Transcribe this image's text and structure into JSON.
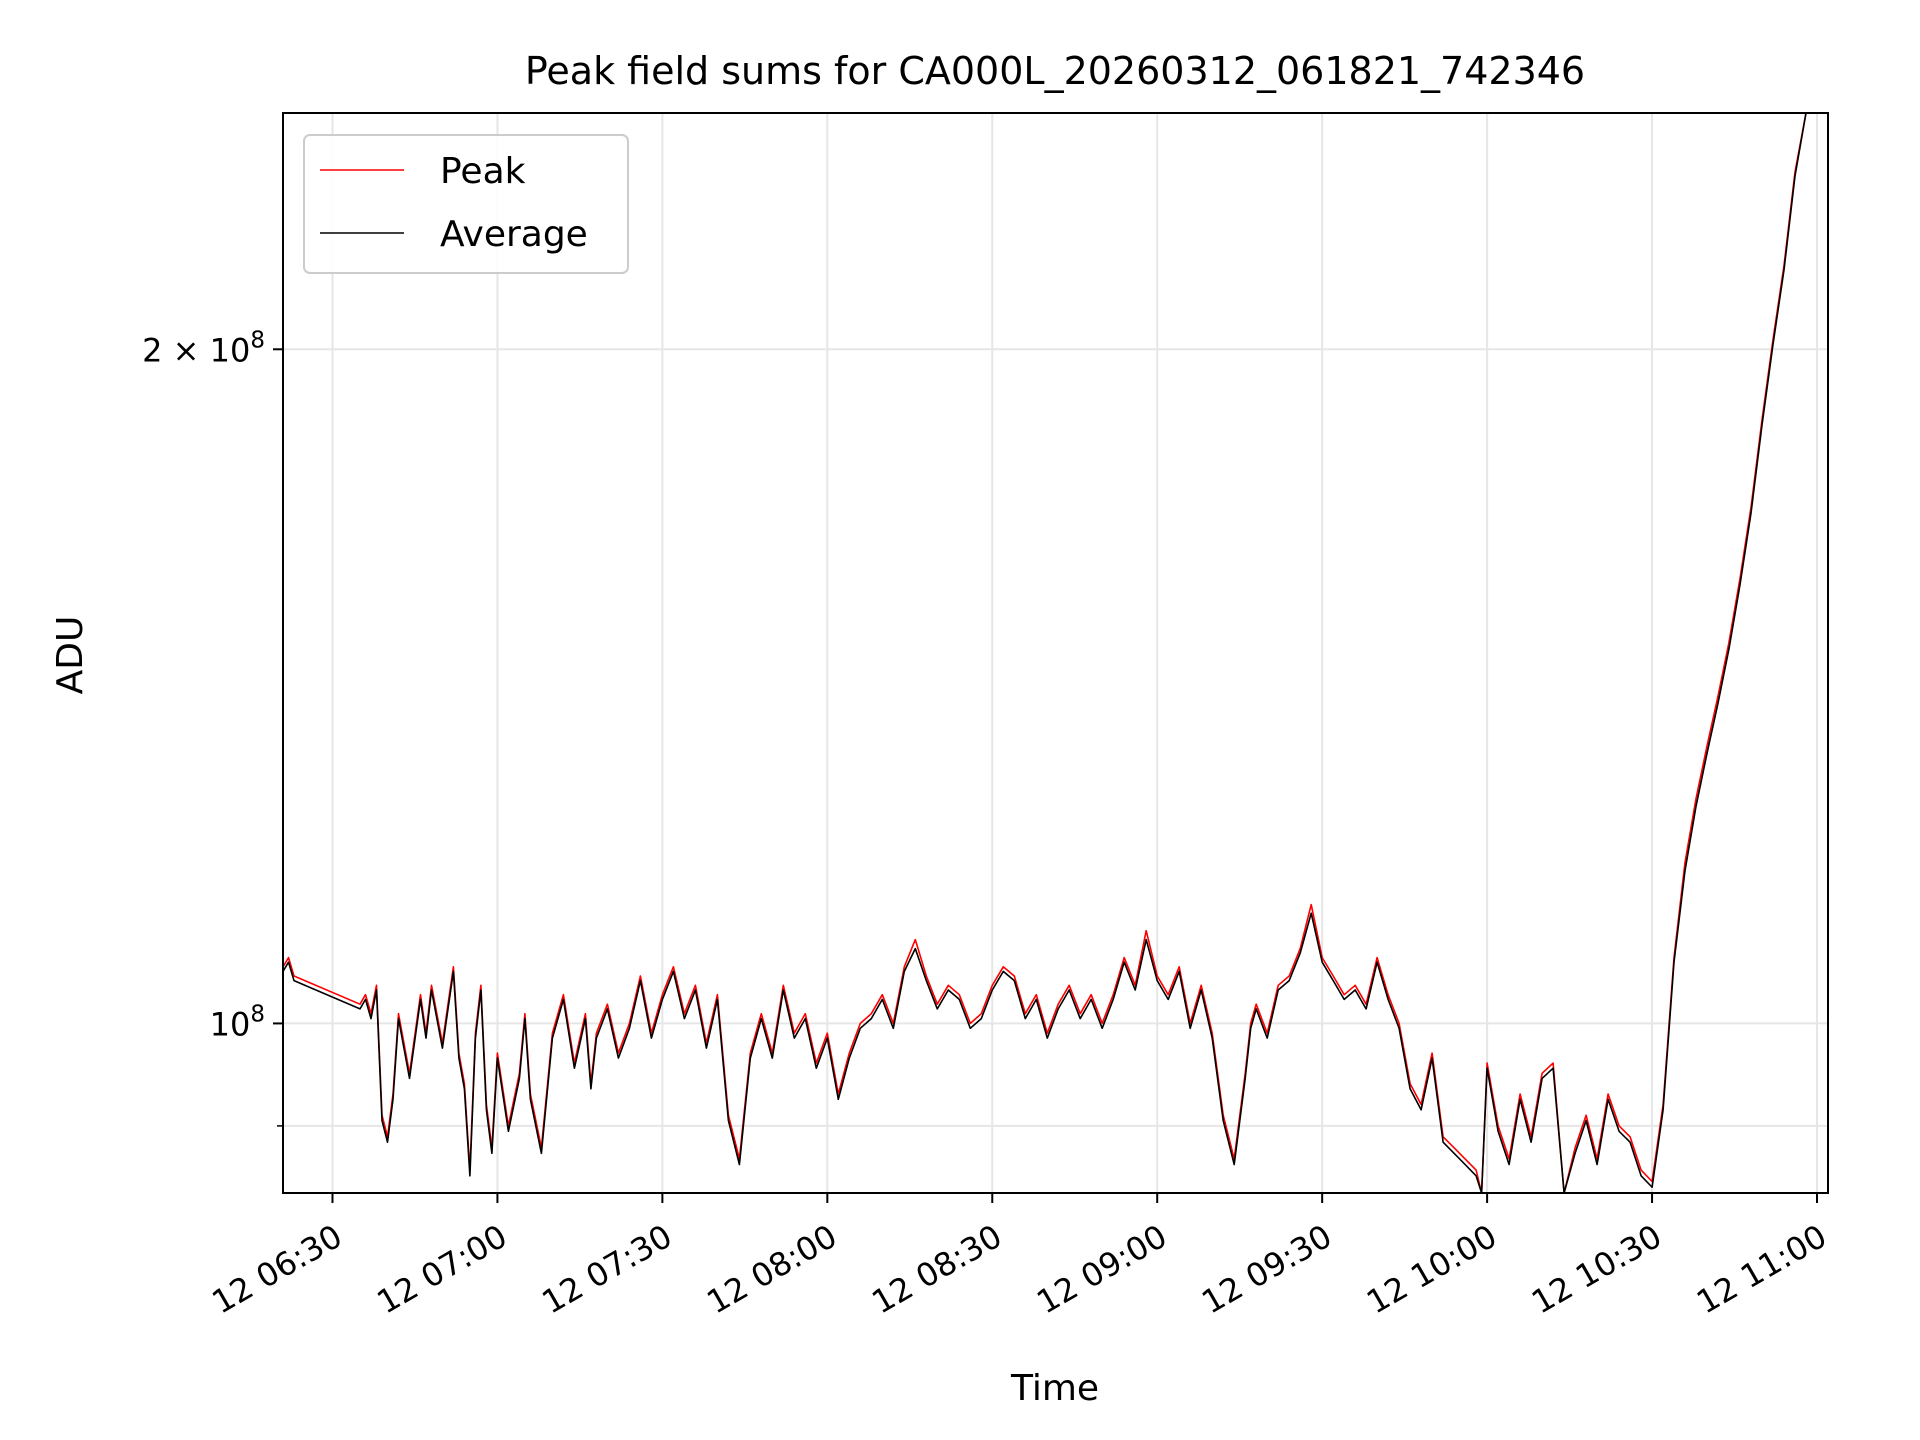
{
  "chart_data": {
    "type": "line",
    "title": "Peak field sums for CA000L_20260312_061821_742346",
    "xlabel": "Time",
    "ylabel": "ADU",
    "y_scale": "log",
    "ylim": [
      84000000,
      255000000
    ],
    "xlim_minutes": [
      381,
      662
    ],
    "grid": true,
    "legend_position": "top-left",
    "x_ticks": [
      {
        "minute": 390,
        "label": "12 06:30"
      },
      {
        "minute": 420,
        "label": "12 07:00"
      },
      {
        "minute": 450,
        "label": "12 07:30"
      },
      {
        "minute": 480,
        "label": "12 08:00"
      },
      {
        "minute": 510,
        "label": "12 08:30"
      },
      {
        "minute": 540,
        "label": "12 09:00"
      },
      {
        "minute": 570,
        "label": "12 09:30"
      },
      {
        "minute": 600,
        "label": "12 10:00"
      },
      {
        "minute": 630,
        "label": "12 10:30"
      },
      {
        "minute": 660,
        "label": "12 11:00"
      }
    ],
    "y_major_ticks": [
      {
        "value": 100000000,
        "base": "10",
        "exp": "8",
        "mantissa": ""
      },
      {
        "value": 200000000,
        "base": "10",
        "exp": "8",
        "mantissa": "2"
      }
    ],
    "y_minor_grid": [
      90000000
    ],
    "times_minutes": [
      381,
      382,
      383,
      395,
      396,
      397,
      398,
      399,
      400,
      401,
      402,
      404,
      406,
      407,
      408,
      410,
      412,
      413,
      414,
      415,
      416,
      417,
      418,
      419,
      420,
      422,
      424,
      425,
      426,
      428,
      430,
      432,
      434,
      436,
      437,
      438,
      440,
      442,
      444,
      446,
      448,
      450,
      452,
      454,
      456,
      458,
      460,
      462,
      464,
      466,
      468,
      470,
      472,
      474,
      476,
      478,
      480,
      482,
      484,
      486,
      488,
      490,
      492,
      494,
      496,
      498,
      500,
      502,
      504,
      506,
      508,
      510,
      512,
      514,
      516,
      518,
      520,
      522,
      524,
      526,
      528,
      530,
      532,
      534,
      536,
      538,
      540,
      542,
      544,
      546,
      548,
      550,
      552,
      554,
      556,
      557,
      558,
      560,
      562,
      564,
      566,
      568,
      570,
      572,
      574,
      576,
      578,
      580,
      582,
      584,
      586,
      588,
      590,
      592,
      594,
      596,
      598,
      599,
      600,
      602,
      604,
      606,
      608,
      610,
      612,
      614,
      616,
      618,
      620,
      622,
      624,
      626,
      628,
      630,
      632,
      634,
      636,
      638,
      640,
      642,
      644,
      646,
      648,
      650,
      652,
      654,
      656,
      658,
      660,
      662
    ],
    "series": [
      {
        "name": "Peak",
        "color": "#ff0000",
        "values": [
          106000000,
          107000000,
          105000000,
          102000000,
          103000000,
          101000000,
          104000000,
          91000000,
          89000000,
          93000000,
          101000000,
          95000000,
          103000000,
          99000000,
          104000000,
          98000000,
          106000000,
          97000000,
          94000000,
          86000000,
          99000000,
          104000000,
          92000000,
          88000000,
          97000000,
          90000000,
          95000000,
          101000000,
          93000000,
          88000000,
          99000000,
          103000000,
          96000000,
          101000000,
          94000000,
          99000000,
          102000000,
          97000000,
          100000000,
          105000000,
          99000000,
          103000000,
          106000000,
          101000000,
          104000000,
          98000000,
          103000000,
          91000000,
          87000000,
          97000000,
          101000000,
          97000000,
          104000000,
          99000000,
          101000000,
          96000000,
          99000000,
          93000000,
          97000000,
          100000000,
          101000000,
          103000000,
          100000000,
          106000000,
          109000000,
          105000000,
          102000000,
          104000000,
          103000000,
          100000000,
          101000000,
          104000000,
          106000000,
          105000000,
          101000000,
          103000000,
          99000000,
          102000000,
          104000000,
          101000000,
          103000000,
          100000000,
          103000000,
          107000000,
          104000000,
          110000000,
          105000000,
          103000000,
          106000000,
          100000000,
          104000000,
          99000000,
          91000000,
          87000000,
          95000000,
          100000000,
          102000000,
          99000000,
          104000000,
          105000000,
          108000000,
          113000000,
          107000000,
          105000000,
          103000000,
          104000000,
          102000000,
          107000000,
          103000000,
          100000000,
          94000000,
          92000000,
          97000000,
          89000000,
          88000000,
          87000000,
          86000000,
          84000000,
          96000000,
          90000000,
          87000000,
          93000000,
          89000000,
          95000000,
          96000000,
          84000000,
          88000000,
          91000000,
          87000000,
          93000000,
          90000000,
          89000000,
          86000000,
          85000000,
          92000000,
          107000000,
          118000000,
          126000000,
          133000000,
          140000000,
          148000000,
          158000000,
          170000000,
          186000000,
          202000000,
          218000000,
          240000000,
          255000000,
          255000000,
          255000000
        ]
      },
      {
        "name": "Average",
        "color": "#000000",
        "values": [
          105500000,
          106500000,
          104500000,
          101500000,
          102500000,
          100500000,
          103500000,
          90500000,
          88500000,
          92500000,
          100500000,
          94500000,
          102500000,
          98500000,
          103500000,
          97500000,
          105500000,
          96500000,
          93500000,
          85500000,
          98500000,
          103500000,
          91500000,
          87500000,
          96500000,
          89500000,
          94500000,
          100500000,
          92500000,
          87500000,
          98500000,
          102500000,
          95500000,
          100500000,
          93500000,
          98500000,
          101500000,
          96500000,
          99500000,
          104500000,
          98500000,
          102500000,
          105500000,
          100500000,
          103500000,
          97500000,
          102500000,
          90500000,
          86500000,
          96500000,
          100500000,
          96500000,
          103500000,
          98500000,
          100500000,
          95500000,
          98500000,
          92500000,
          96500000,
          99500000,
          100500000,
          102500000,
          99500000,
          105500000,
          108000000,
          104500000,
          101500000,
          103500000,
          102500000,
          99500000,
          100500000,
          103500000,
          105500000,
          104500000,
          100500000,
          102500000,
          98500000,
          101500000,
          103500000,
          100500000,
          102500000,
          99500000,
          102500000,
          106500000,
          103500000,
          109000000,
          104500000,
          102500000,
          105500000,
          99500000,
          103500000,
          98500000,
          90500000,
          86500000,
          94500000,
          99500000,
          101500000,
          98500000,
          103500000,
          104500000,
          107500000,
          112000000,
          106500000,
          104500000,
          102500000,
          103500000,
          101500000,
          106500000,
          102500000,
          99500000,
          93500000,
          91500000,
          96500000,
          88500000,
          87500000,
          86500000,
          85500000,
          83800000,
          95500000,
          89500000,
          86500000,
          92500000,
          88500000,
          94500000,
          95500000,
          83800000,
          87500000,
          90500000,
          86500000,
          92500000,
          89500000,
          88500000,
          85500000,
          84500000,
          91500000,
          106500000,
          117000000,
          125000000,
          132000000,
          139000000,
          147000000,
          157000000,
          169000000,
          185000000,
          201000000,
          217000000,
          239000000,
          255000000,
          255000000,
          255000000
        ]
      }
    ]
  }
}
